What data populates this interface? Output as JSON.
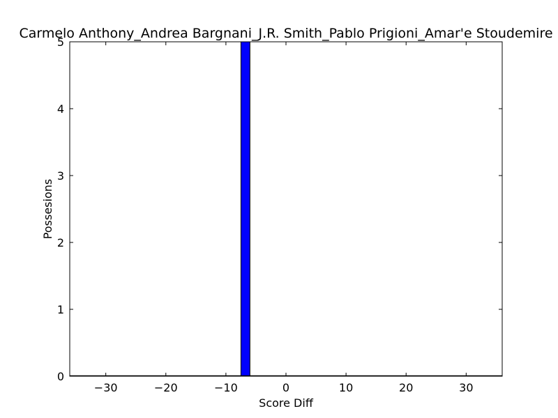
{
  "chart_data": {
    "type": "bar",
    "title": "Carmelo Anthony_Andrea Bargnani_J.R. Smith_Pablo Prigioni_Amar'e Stoudemire",
    "xlabel": "Score Diff",
    "ylabel": "Possesions",
    "xlim": [
      -36,
      36
    ],
    "ylim": [
      0,
      5
    ],
    "x_ticks": [
      -30,
      -20,
      -10,
      0,
      10,
      20,
      30
    ],
    "x_tick_labels": [
      "−30",
      "−20",
      "−10",
      "0",
      "10",
      "20",
      "30"
    ],
    "y_ticks": [
      0,
      1,
      2,
      3,
      4,
      5
    ],
    "y_tick_labels": [
      "0",
      "1",
      "2",
      "3",
      "4",
      "5"
    ],
    "bin_width": 1.5,
    "bins": [
      {
        "x": -7.5,
        "value": 5
      }
    ],
    "grid": false,
    "bar_color": "#0000ff",
    "edge_color": "#000000"
  }
}
